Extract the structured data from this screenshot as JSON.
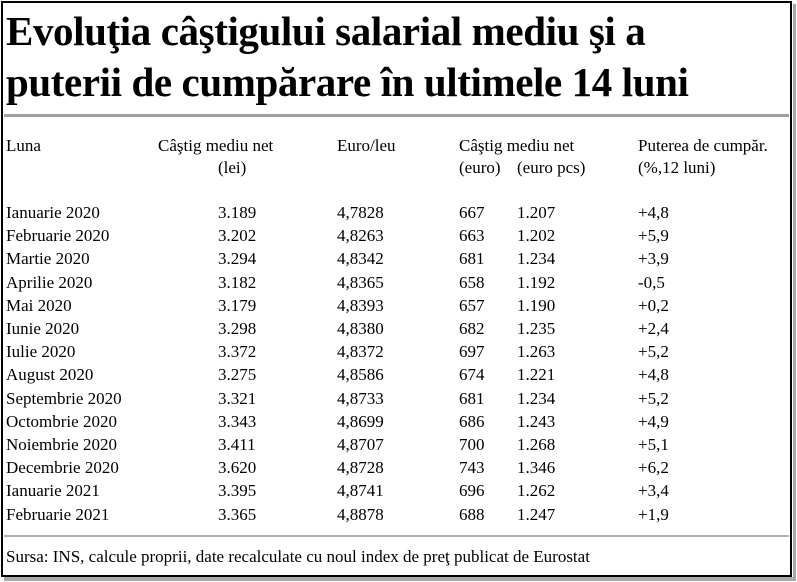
{
  "title": {
    "line1": "Evoluţia câştigului salarial mediu şi a",
    "line2": "puterii de cumpărare în ultimele 14 luni"
  },
  "headers": {
    "luna": "Luna",
    "castig_lei_line1": "Câştig mediu net",
    "castig_lei_line2": "(lei)",
    "euro_leu": "Euro/leu",
    "castig_euro_line1": "Câştig mediu net",
    "castig_euro_sub1": "(euro)",
    "castig_euro_sub2": "(euro pcs)",
    "putere_line1": "Puterea de cumpăr.",
    "putere_line2": "(%,12 luni)"
  },
  "rows": [
    {
      "luna": "Ianuarie 2020",
      "lei": "3.189",
      "euro_leu": "4,7828",
      "euro": "667",
      "euro_pcs": "1.207",
      "putere": "+4,8"
    },
    {
      "luna": "Februarie 2020",
      "lei": "3.202",
      "euro_leu": "4,8263",
      "euro": "663",
      "euro_pcs": "1.202",
      "putere": "+5,9"
    },
    {
      "luna": "Martie 2020",
      "lei": "3.294",
      "euro_leu": "4,8342",
      "euro": "681",
      "euro_pcs": "1.234",
      "putere": "+3,9"
    },
    {
      "luna": "Aprilie 2020",
      "lei": "3.182",
      "euro_leu": "4,8365",
      "euro": "658",
      "euro_pcs": "1.192",
      "putere": "-0,5"
    },
    {
      "luna": "Mai 2020",
      "lei": "3.179",
      "euro_leu": "4,8393",
      "euro": "657",
      "euro_pcs": "1.190",
      "putere": "+0,2"
    },
    {
      "luna": "Iunie 2020",
      "lei": "3.298",
      "euro_leu": "4,8380",
      "euro": "682",
      "euro_pcs": "1.235",
      "putere": "+2,4"
    },
    {
      "luna": "Iulie 2020",
      "lei": "3.372",
      "euro_leu": "4,8372",
      "euro": "697",
      "euro_pcs": "1.263",
      "putere": "+5,2"
    },
    {
      "luna": "August 2020",
      "lei": "3.275",
      "euro_leu": "4,8586",
      "euro": "674",
      "euro_pcs": "1.221",
      "putere": "+4,8"
    },
    {
      "luna": "Septembrie 2020",
      "lei": "3.321",
      "euro_leu": "4,8733",
      "euro": "681",
      "euro_pcs": "1.234",
      "putere": "+5,2"
    },
    {
      "luna": "Octombrie 2020",
      "lei": "3.343",
      "euro_leu": "4,8699",
      "euro": "686",
      "euro_pcs": "1.243",
      "putere": "+4,9"
    },
    {
      "luna": "Noiembrie 2020",
      "lei": "3.411",
      "euro_leu": "4,8707",
      "euro": "700",
      "euro_pcs": "1.268",
      "putere": "+5,1"
    },
    {
      "luna": "Decembrie 2020",
      "lei": "3.620",
      "euro_leu": "4,8728",
      "euro": "743",
      "euro_pcs": "1.346",
      "putere": "+6,2"
    },
    {
      "luna": "Ianuarie 2021",
      "lei": "3.395",
      "euro_leu": "4,8741",
      "euro": "696",
      "euro_pcs": "1.262",
      "putere": "+3,4"
    },
    {
      "luna": "Februarie 2021",
      "lei": "3.365",
      "euro_leu": "4,8878",
      "euro": "688",
      "euro_pcs": "1.247",
      "putere": "+1,9"
    }
  ],
  "source": "Sursa: INS, calcule proprii, date recalculate cu noul index de preţ publicat de Eurostat"
}
